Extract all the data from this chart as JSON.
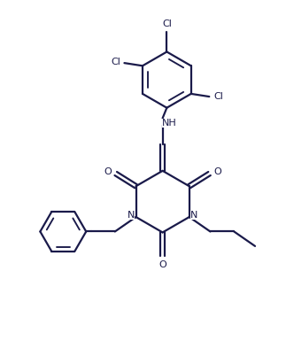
{
  "bg_color": "#ffffff",
  "line_color": "#1a1a4a",
  "line_width": 1.6,
  "figsize": [
    3.23,
    4.11
  ],
  "dpi": 100,
  "font_size": 8.0,
  "label_color": "#1a1a4a",
  "xlim": [
    0,
    10
  ],
  "ylim": [
    0,
    13
  ]
}
